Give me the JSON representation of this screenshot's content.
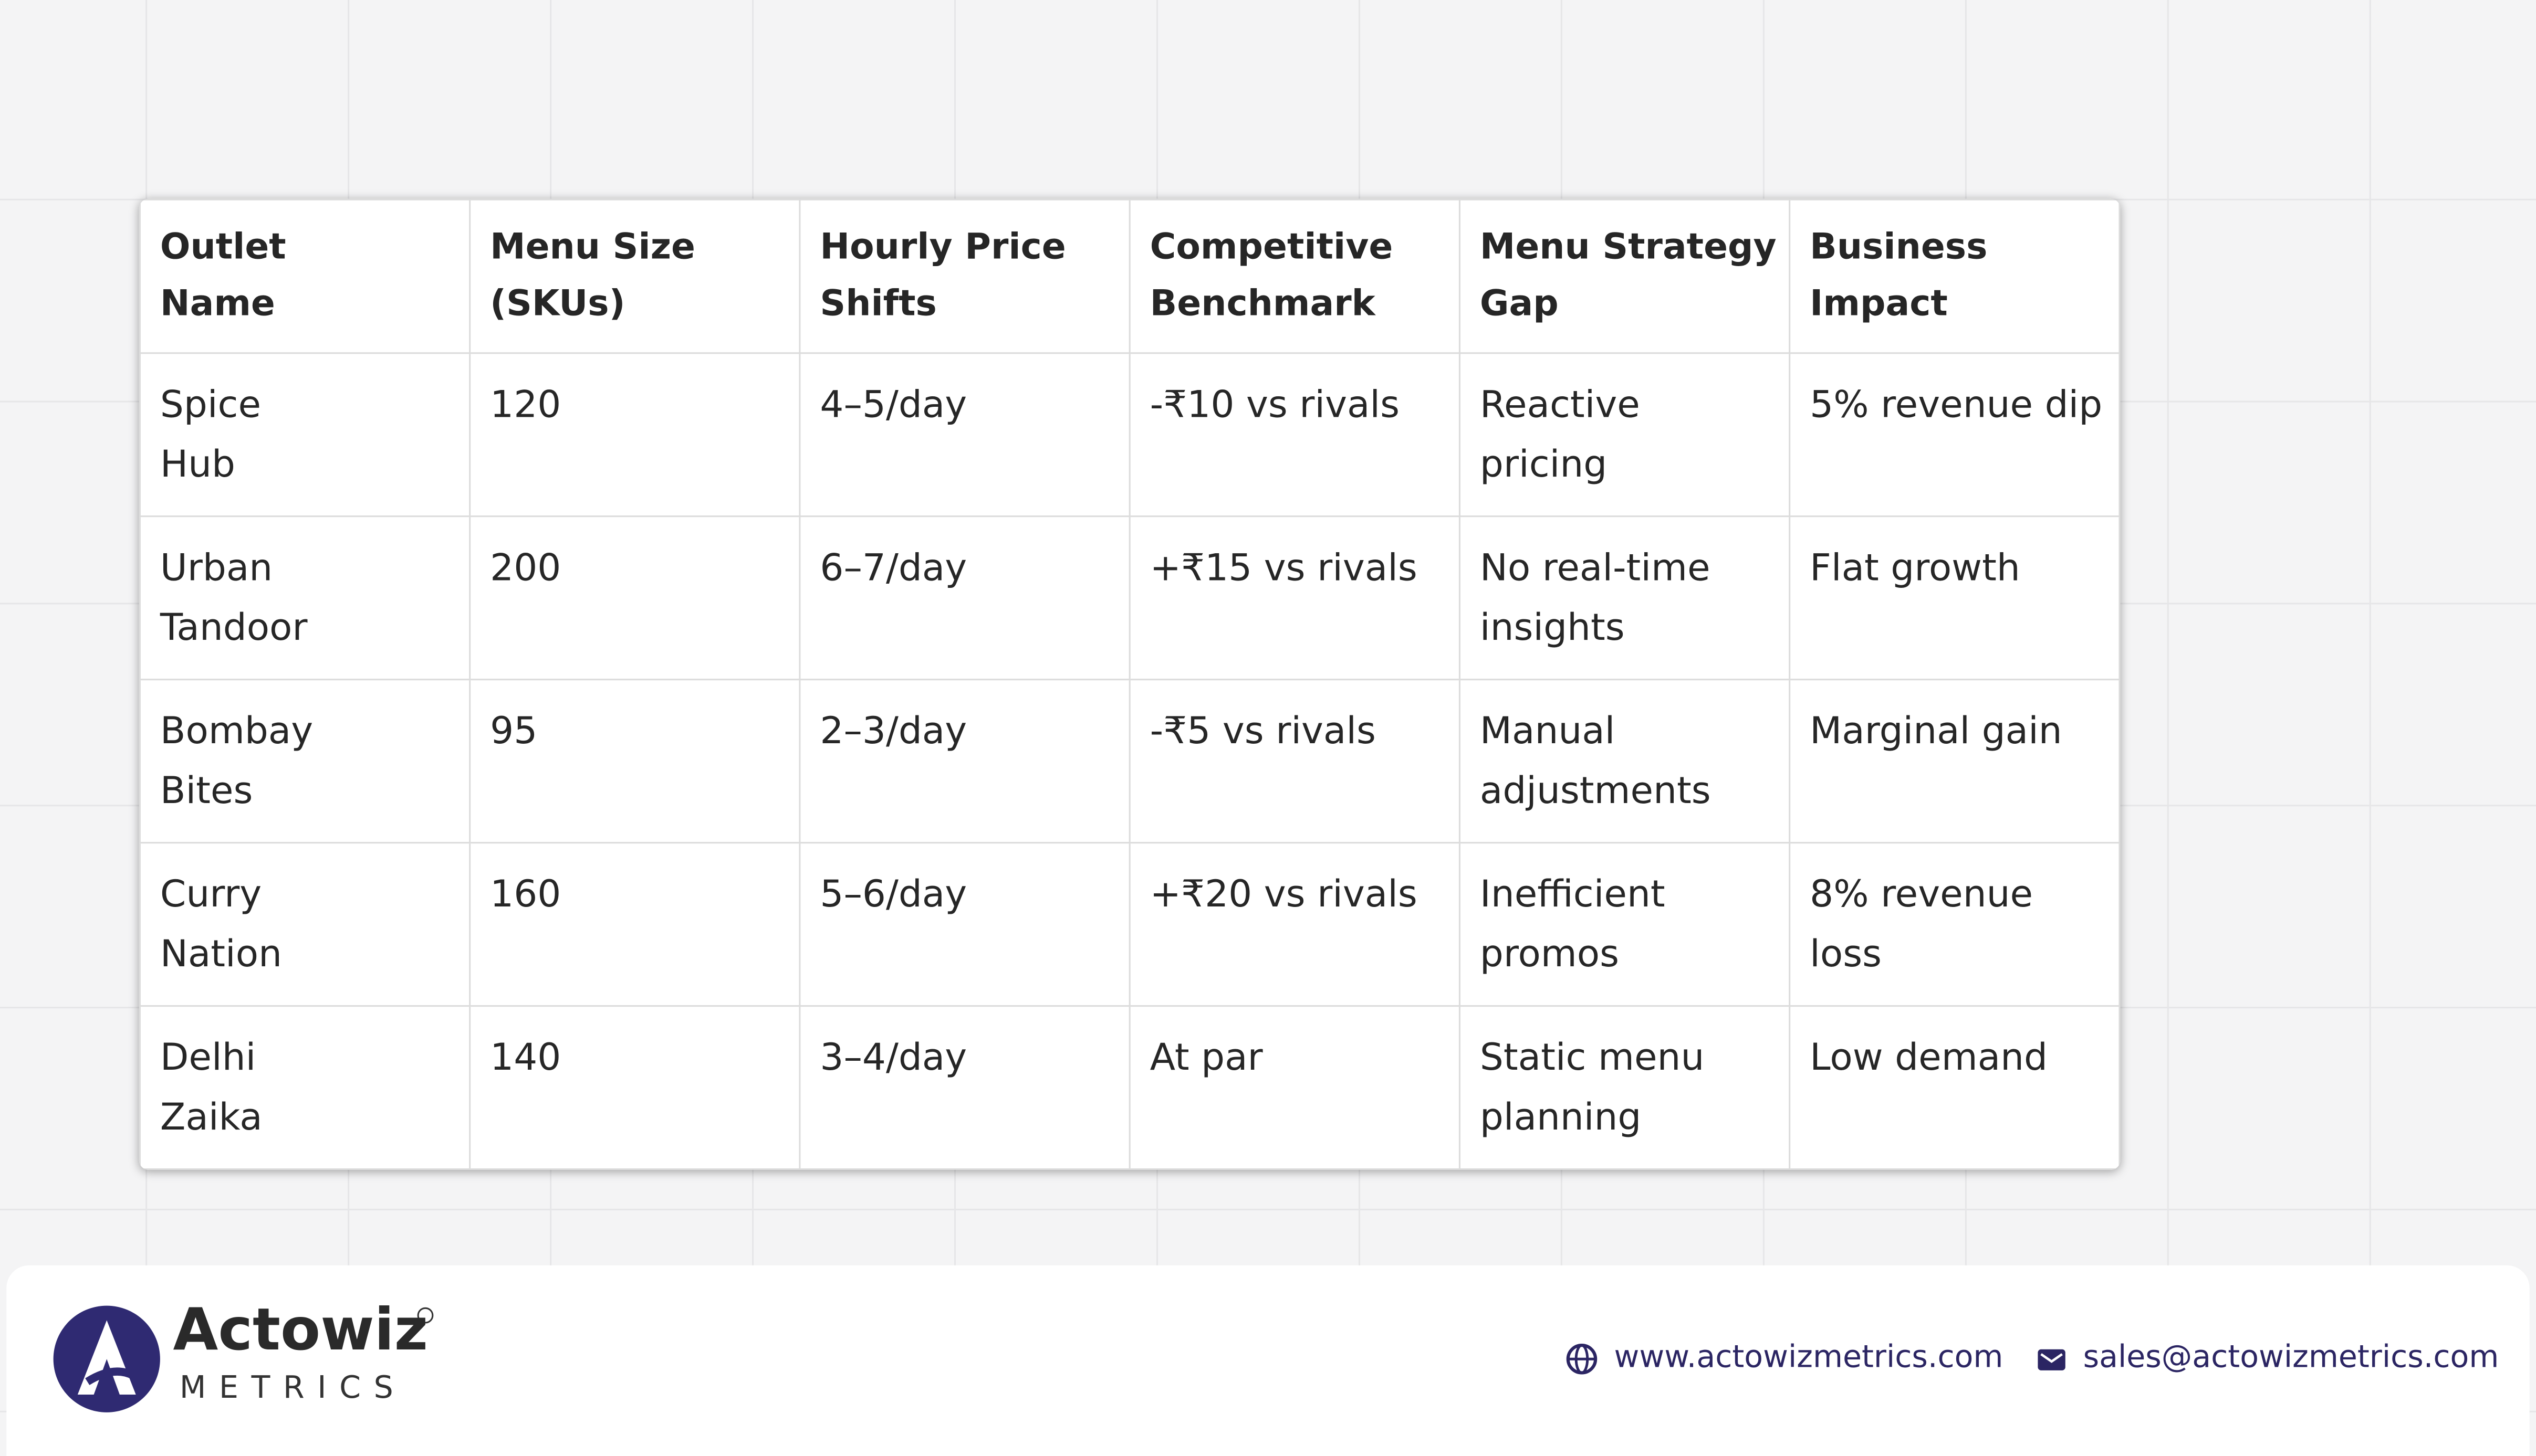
{
  "table": {
    "header": [
      [
        "Outlet",
        "Name"
      ],
      [
        "Menu Size",
        "(SKUs)"
      ],
      [
        "Hourly Price",
        "Shifts"
      ],
      [
        "Competitive",
        "Benchmark"
      ],
      [
        "Menu Strategy",
        "Gap"
      ],
      [
        "Business",
        "Impact"
      ]
    ],
    "rows": [
      [
        [
          "Spice",
          "Hub"
        ],
        [
          "120"
        ],
        [
          "4–5/day"
        ],
        [
          "-₹10 vs rivals"
        ],
        [
          "Reactive",
          "pricing"
        ],
        [
          "5% revenue dip"
        ]
      ],
      [
        [
          "Urban",
          "Tandoor"
        ],
        [
          "200"
        ],
        [
          "6–7/day"
        ],
        [
          "+₹15 vs rivals"
        ],
        [
          "No real-time",
          "insights"
        ],
        [
          "Flat growth"
        ]
      ],
      [
        [
          "Bombay",
          "Bites"
        ],
        [
          "95"
        ],
        [
          "2–3/day"
        ],
        [
          "-₹5 vs rivals"
        ],
        [
          "Manual",
          "adjustments"
        ],
        [
          "Marginal gain"
        ]
      ],
      [
        [
          "Curry",
          "Nation"
        ],
        [
          "160"
        ],
        [
          "5–6/day"
        ],
        [
          "+₹20 vs rivals"
        ],
        [
          "Inefficient",
          "promos"
        ],
        [
          "8% revenue",
          "loss"
        ]
      ],
      [
        [
          "Delhi",
          "Zaika"
        ],
        [
          "140"
        ],
        [
          "3–4/day"
        ],
        [
          "At par"
        ],
        [
          "Static menu",
          "planning"
        ],
        [
          "Low demand"
        ]
      ]
    ]
  },
  "footer": {
    "brand": "Actowiz",
    "brand_sub": "METRICS",
    "website": "www.actowizmetrics.com",
    "email": "sales@actowizmetrics.com"
  }
}
